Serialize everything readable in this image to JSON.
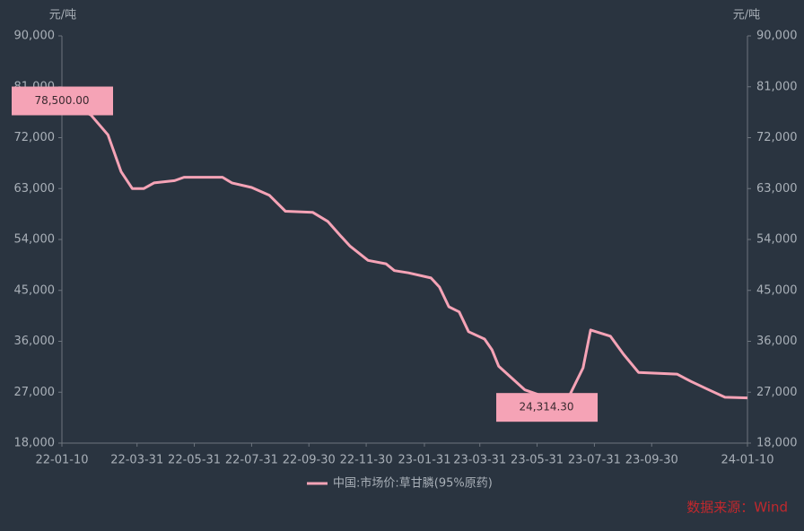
{
  "chart_data": {
    "type": "line",
    "y_unit": "元/吨",
    "y2_unit": "元/吨",
    "xlim": [
      "22-01-10",
      "24-01-10"
    ],
    "xticks": [
      "22-01-10",
      "22-03-31",
      "22-05-31",
      "22-07-31",
      "22-09-30",
      "22-11-30",
      "23-01-31",
      "23-03-31",
      "23-05-31",
      "23-07-31",
      "23-09-30",
      "24-01-10"
    ],
    "ylim": [
      18000,
      90000
    ],
    "yticks": [
      {
        "value": 18000,
        "label": "18,000"
      },
      {
        "value": 27000,
        "label": "27,000"
      },
      {
        "value": 36000,
        "label": "36,000"
      },
      {
        "value": 45000,
        "label": "45,000"
      },
      {
        "value": 54000,
        "label": "54,000"
      },
      {
        "value": 63000,
        "label": "63,000"
      },
      {
        "value": 72000,
        "label": "72,000"
      },
      {
        "value": 81000,
        "label": "81,000"
      },
      {
        "value": 90000,
        "label": "90,000"
      }
    ],
    "y2lim": [
      18000,
      90000
    ],
    "y2ticks": [
      {
        "value": 18000,
        "label": "18,000"
      },
      {
        "value": 27000,
        "label": "27,000"
      },
      {
        "value": 36000,
        "label": "36,000"
      },
      {
        "value": 45000,
        "label": "45,000"
      },
      {
        "value": 54000,
        "label": "54,000"
      },
      {
        "value": 63000,
        "label": "63,000"
      },
      {
        "value": 72000,
        "label": "72,000"
      },
      {
        "value": 81000,
        "label": "81,000"
      },
      {
        "value": 90000,
        "label": "90,000"
      }
    ],
    "x": [
      "22-01-10",
      "22-02-10",
      "22-02-28",
      "22-03-14",
      "22-03-26",
      "22-04-07",
      "22-04-18",
      "22-05-10",
      "22-05-20",
      "22-06-30",
      "22-07-10",
      "22-07-31",
      "22-08-19",
      "22-09-05",
      "22-10-04",
      "22-10-20",
      "22-11-03",
      "22-11-13",
      "22-12-02",
      "22-12-21",
      "22-12-30",
      "23-01-14",
      "23-02-07",
      "23-02-16",
      "23-02-26",
      "23-03-09",
      "23-03-19",
      "23-04-05",
      "23-04-13",
      "23-04-20",
      "23-05-18",
      "23-06-01",
      "23-06-10",
      "23-07-05",
      "23-07-19",
      "23-07-27",
      "23-08-17",
      "23-08-31",
      "23-09-16",
      "23-10-27",
      "23-11-11",
      "23-11-30",
      "23-12-17",
      "24-01-10"
    ],
    "series": [
      {
        "name": "中国:市场价:草甘膦(95%原药)",
        "color": "#f5a3b6",
        "values": [
          78500,
          76000,
          72500,
          66000,
          63000,
          63000,
          64000,
          64400,
          65000,
          65000,
          64000,
          63200,
          61800,
          59000,
          58800,
          57200,
          54600,
          52800,
          50300,
          49700,
          48500,
          48100,
          47200,
          45600,
          42100,
          41200,
          37700,
          36400,
          34500,
          31600,
          27400,
          26600,
          24314.3,
          26600,
          31300,
          38000,
          36900,
          33700,
          30500,
          30200,
          28900,
          27400,
          26100,
          26000
        ],
        "value_labels": [
          "78,500.00",
          null,
          null,
          null,
          null,
          null,
          null,
          null,
          null,
          null,
          null,
          null,
          null,
          null,
          null,
          null,
          null,
          null,
          null,
          null,
          null,
          null,
          null,
          null,
          null,
          null,
          null,
          null,
          null,
          null,
          null,
          null,
          "24,314.30",
          null,
          null,
          null,
          null,
          null,
          null,
          null,
          null,
          null,
          null,
          null
        ]
      }
    ],
    "source": "数据来源：Wind",
    "source_color": "#c0282d"
  }
}
